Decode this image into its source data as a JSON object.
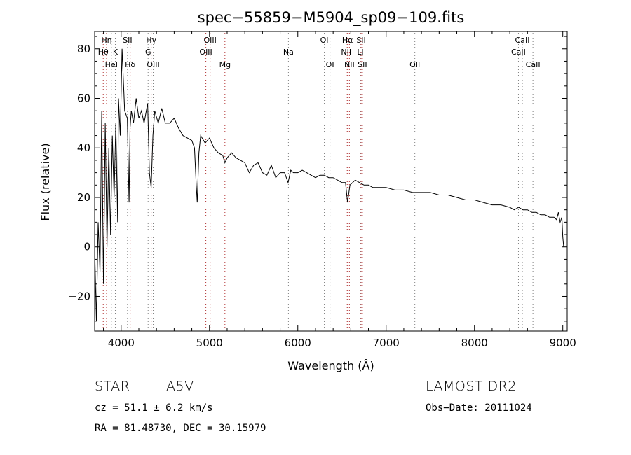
{
  "chart_data": {
    "type": "line",
    "title": "spec−55859−M5904_sp09−109.fits",
    "xlabel": "Wavelength (Å)",
    "ylabel": "Flux (relative)",
    "xlim": [
      3700,
      9050
    ],
    "ylim": [
      -34,
      87
    ],
    "xticks": [
      4000,
      5000,
      6000,
      7000,
      8000,
      9000
    ],
    "yticks": [
      -20,
      0,
      20,
      40,
      60,
      80
    ],
    "x_tick_labels": [
      "4000",
      "5000",
      "6000",
      "7000",
      "8000",
      "9000"
    ],
    "y_tick_labels": [
      "−20",
      "0",
      "20",
      "40",
      "60",
      "80"
    ],
    "series": [
      {
        "name": "flux",
        "color": "#000000",
        "x": [
          3700,
          3720,
          3740,
          3760,
          3780,
          3800,
          3820,
          3840,
          3860,
          3880,
          3900,
          3920,
          3940,
          3960,
          3970,
          3990,
          4010,
          4040,
          4070,
          4090,
          4101,
          4115,
          4140,
          4170,
          4200,
          4230,
          4260,
          4300,
          4320,
          4340,
          4360,
          4380,
          4420,
          4460,
          4500,
          4550,
          4600,
          4650,
          4700,
          4750,
          4800,
          4830,
          4850,
          4861,
          4880,
          4900,
          4950,
          5000,
          5050,
          5100,
          5150,
          5175,
          5200,
          5250,
          5300,
          5350,
          5400,
          5450,
          5500,
          5550,
          5600,
          5650,
          5700,
          5750,
          5800,
          5850,
          5890,
          5920,
          5950,
          6000,
          6050,
          6100,
          6150,
          6200,
          6250,
          6300,
          6350,
          6400,
          6450,
          6500,
          6540,
          6563,
          6590,
          6620,
          6650,
          6700,
          6750,
          6800,
          6850,
          6900,
          7000,
          7100,
          7200,
          7300,
          7400,
          7500,
          7600,
          7700,
          7800,
          7900,
          8000,
          8100,
          8200,
          8300,
          8400,
          8450,
          8500,
          8550,
          8600,
          8650,
          8700,
          8750,
          8800,
          8850,
          8900,
          8930,
          8950,
          8970,
          8990,
          9000,
          9010
        ],
        "y": [
          0,
          -30,
          10,
          -10,
          55,
          -15,
          50,
          0,
          40,
          5,
          45,
          20,
          50,
          10,
          60,
          45,
          80,
          55,
          52,
          18,
          48,
          55,
          50,
          60,
          52,
          55,
          50,
          58,
          30,
          24,
          45,
          55,
          50,
          56,
          50,
          50,
          52,
          48,
          45,
          44,
          43,
          40,
          25,
          18,
          38,
          45,
          42,
          44,
          40,
          38,
          37,
          34,
          36,
          38,
          36,
          35,
          34,
          30,
          33,
          34,
          30,
          29,
          33,
          28,
          30,
          30,
          26,
          31,
          30,
          30,
          31,
          30,
          29,
          28,
          29,
          29,
          28,
          28,
          27,
          26,
          26,
          18,
          25,
          26,
          27,
          26,
          25,
          25,
          24,
          24,
          24,
          23,
          23,
          22,
          22,
          22,
          21,
          21,
          20,
          19,
          19,
          18,
          17,
          17,
          16,
          15,
          16,
          15,
          15,
          14,
          14,
          13,
          13,
          12,
          12,
          11,
          14,
          10,
          12,
          4,
          0
        ]
      }
    ],
    "lines": [
      {
        "name": "Hη",
        "x": 3835,
        "color": "#b03030",
        "row": 0
      },
      {
        "name": "Hθ",
        "x": 3797,
        "color": "#b03030",
        "row": 1
      },
      {
        "name": "HeI",
        "x": 3889,
        "color": "#808080",
        "row": 2
      },
      {
        "name": "K",
        "x": 3934,
        "color": "#808080",
        "row": 1
      },
      {
        "name": "SII",
        "x": 4072,
        "color": "#808080",
        "row": 0
      },
      {
        "name": "Hδ",
        "x": 4102,
        "color": "#b03030",
        "row": 2
      },
      {
        "name": "Hγ",
        "x": 4340,
        "color": "#b03030",
        "row": 0
      },
      {
        "name": "G",
        "x": 4305,
        "color": "#808080",
        "row": 1
      },
      {
        "name": "OIII",
        "x": 4363,
        "color": "#808080",
        "row": 2
      },
      {
        "name": "OIII",
        "x": 5007,
        "color": "#b03030",
        "row": 0
      },
      {
        "name": "OIII",
        "x": 4959,
        "color": "#b03030",
        "row": 1
      },
      {
        "name": "Mg",
        "x": 5175,
        "color": "#b03030",
        "row": 2
      },
      {
        "name": "Na",
        "x": 5894,
        "color": "#808080",
        "row": 1
      },
      {
        "name": "OI",
        "x": 6300,
        "color": "#808080",
        "row": 0
      },
      {
        "name": "OI",
        "x": 6364,
        "color": "#808080",
        "row": 2
      },
      {
        "name": "Hα",
        "x": 6563,
        "color": "#b03030",
        "row": 0
      },
      {
        "name": "NII",
        "x": 6548,
        "color": "#b03030",
        "row": 1
      },
      {
        "name": "NII",
        "x": 6584,
        "color": "#b03030",
        "row": 2
      },
      {
        "name": "SII",
        "x": 6717,
        "color": "#b03030",
        "row": 0
      },
      {
        "name": "Li",
        "x": 6708,
        "color": "#808080",
        "row": 1
      },
      {
        "name": "SII",
        "x": 6731,
        "color": "#b03030",
        "row": 2
      },
      {
        "name": "OII",
        "x": 7325,
        "color": "#808080",
        "row": 2
      },
      {
        "name": "CaII",
        "x": 8542,
        "color": "#808080",
        "row": 0
      },
      {
        "name": "CaII",
        "x": 8498,
        "color": "#808080",
        "row": 1
      },
      {
        "name": "CaII",
        "x": 8662,
        "color": "#808080",
        "row": 2
      }
    ]
  },
  "info": {
    "object_class": "STAR",
    "subclass": "A5V",
    "survey": "LAMOST DR2",
    "cz": "cz = 51.1 ± 6.2 km/s",
    "obs_date": "Obs−Date: 20111024",
    "coords": "RA =  81.48730, DEC =  30.15979"
  }
}
